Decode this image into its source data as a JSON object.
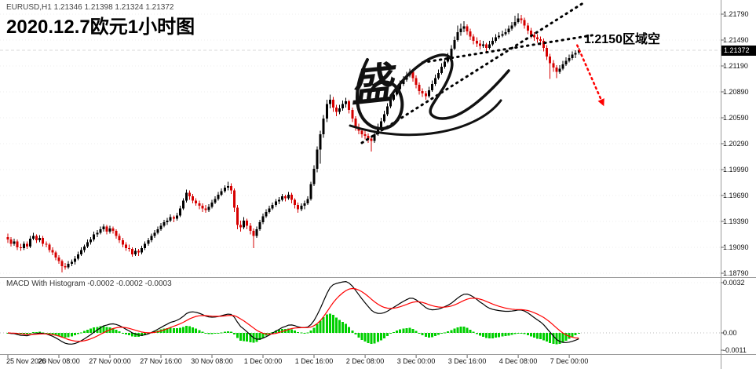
{
  "header": {
    "symbol_line": "EURUSD,H1 1.21346 1.21398 1.21324 1.21372",
    "title": "2020.12.7欧元1小时图"
  },
  "annotation": {
    "label": "1.2150区域空"
  },
  "watermark": {
    "text": "盛"
  },
  "price_axis": {
    "current": "1.21372"
  },
  "macd": {
    "header": "MACD With Histogram -0.0002 -0.0002 -0.0003"
  },
  "chart_data": {
    "type": "candlestick",
    "symbol": "EURUSD",
    "timeframe": "H1",
    "title": "2020.12.7欧元1小时图",
    "last_ohlc": {
      "open": "1.21346",
      "high": "1.21398",
      "low": "1.21324",
      "close": "1.21372"
    },
    "y_axis": {
      "max": 1.21954,
      "min": 1.18754
    },
    "y_ticks": [
      "1.21790",
      "1.21490",
      "1.21190",
      "1.20890",
      "1.20590",
      "1.20290",
      "1.19990",
      "1.19690",
      "1.19390",
      "1.19090",
      "1.18790"
    ],
    "macd_ticks": [
      "0.0032",
      "0.00",
      "-0.0011"
    ],
    "x_labels": [
      {
        "label": "25 Nov 2020",
        "bar": 0
      },
      {
        "label": "26 Nov 08:00",
        "bar": 16
      },
      {
        "label": "27 Nov 00:00",
        "bar": 32
      },
      {
        "label": "27 Nov 16:00",
        "bar": 48
      },
      {
        "label": "30 Nov 08:00",
        "bar": 64
      },
      {
        "label": "1 Dec 00:00",
        "bar": 80
      },
      {
        "label": "1 Dec 16:00",
        "bar": 96
      },
      {
        "label": "2 Dec 08:00",
        "bar": 112
      },
      {
        "label": "3 Dec 00:00",
        "bar": 128
      },
      {
        "label": "3 Dec 16:00",
        "bar": 144
      },
      {
        "label": "4 Dec 08:00",
        "bar": 160
      },
      {
        "label": "7 Dec 00:00",
        "bar": 176
      }
    ],
    "indicator": {
      "name": "MACD With Histogram",
      "displayed_values": [
        "-0.0002",
        "-0.0002",
        "-0.0003"
      ],
      "fast": 12,
      "slow": 26,
      "signal": 9
    },
    "colors": {
      "up": "#000000",
      "down": "#d60000",
      "hist": "#00cf00",
      "macd_line": "#000000",
      "signal_line": "#ff0000",
      "trendline": "#000000",
      "annotation_arrow": "#ff0000"
    },
    "trendlines": [
      {
        "b1": 111,
        "p1": 1.203,
        "b2": 180,
        "p2": 1.2191
      },
      {
        "b1": 130,
        "p1": 1.2123,
        "b2": 184,
        "p2": 1.2155
      }
    ],
    "sell_arrow": {
      "b1": 178.5,
      "p1": 1.2143,
      "b2": 186,
      "p2": 1.208
    },
    "candles": [
      [
        1.1921,
        1.1925,
        1.1914,
        1.1918
      ],
      [
        1.1918,
        1.1921,
        1.191,
        1.1913
      ],
      [
        1.1913,
        1.1919,
        1.1911,
        1.1916
      ],
      [
        1.1916,
        1.1918,
        1.1906,
        1.1909
      ],
      [
        1.1909,
        1.1913,
        1.1905,
        1.1908
      ],
      [
        1.1908,
        1.1916,
        1.1906,
        1.1913
      ],
      [
        1.1913,
        1.1916,
        1.1907,
        1.191
      ],
      [
        1.191,
        1.1922,
        1.1908,
        1.1919
      ],
      [
        1.1919,
        1.1926,
        1.1917,
        1.1922
      ],
      [
        1.1922,
        1.1924,
        1.1914,
        1.1917
      ],
      [
        1.1917,
        1.1923,
        1.1915,
        1.192
      ],
      [
        1.192,
        1.1922,
        1.191,
        1.1913
      ],
      [
        1.1913,
        1.1916,
        1.1909,
        1.1912
      ],
      [
        1.1912,
        1.1914,
        1.1903,
        1.1906
      ],
      [
        1.1906,
        1.1909,
        1.19,
        1.1903
      ],
      [
        1.1903,
        1.1905,
        1.1894,
        1.1897
      ],
      [
        1.1897,
        1.19,
        1.189,
        1.1893
      ],
      [
        1.1893,
        1.1895,
        1.188,
        1.1887
      ],
      [
        1.1887,
        1.1891,
        1.1883,
        1.1886
      ],
      [
        1.1886,
        1.1893,
        1.1884,
        1.189
      ],
      [
        1.189,
        1.1895,
        1.1887,
        1.1892
      ],
      [
        1.1892,
        1.1899,
        1.1889,
        1.1896
      ],
      [
        1.1896,
        1.1904,
        1.1894,
        1.1901
      ],
      [
        1.1901,
        1.1909,
        1.1899,
        1.1906
      ],
      [
        1.1906,
        1.1912,
        1.1903,
        1.191
      ],
      [
        1.191,
        1.1918,
        1.1908,
        1.1915
      ],
      [
        1.1915,
        1.1921,
        1.1912,
        1.1918
      ],
      [
        1.1918,
        1.1927,
        1.1916,
        1.1924
      ],
      [
        1.1924,
        1.1929,
        1.1921,
        1.1926
      ],
      [
        1.1926,
        1.1933,
        1.1924,
        1.193
      ],
      [
        1.193,
        1.1936,
        1.1927,
        1.1933
      ],
      [
        1.1933,
        1.1935,
        1.1924,
        1.1927
      ],
      [
        1.1927,
        1.1934,
        1.1925,
        1.1931
      ],
      [
        1.1931,
        1.1933,
        1.1925,
        1.1928
      ],
      [
        1.1928,
        1.193,
        1.1919,
        1.1922
      ],
      [
        1.1922,
        1.1925,
        1.1914,
        1.1917
      ],
      [
        1.1917,
        1.192,
        1.1909,
        1.1912
      ],
      [
        1.1912,
        1.1915,
        1.1905,
        1.1908
      ],
      [
        1.1908,
        1.1912,
        1.1904,
        1.1907
      ],
      [
        1.1907,
        1.1909,
        1.1898,
        1.1901
      ],
      [
        1.1901,
        1.1908,
        1.1899,
        1.1905
      ],
      [
        1.1905,
        1.1907,
        1.1899,
        1.1903
      ],
      [
        1.1903,
        1.1911,
        1.1901,
        1.1908
      ],
      [
        1.1908,
        1.1916,
        1.1906,
        1.1913
      ],
      [
        1.1913,
        1.192,
        1.1911,
        1.1917
      ],
      [
        1.1917,
        1.1925,
        1.1915,
        1.1922
      ],
      [
        1.1922,
        1.1929,
        1.192,
        1.1926
      ],
      [
        1.1926,
        1.1933,
        1.1924,
        1.193
      ],
      [
        1.193,
        1.1937,
        1.1928,
        1.1934
      ],
      [
        1.1934,
        1.1941,
        1.1932,
        1.1938
      ],
      [
        1.1938,
        1.1943,
        1.1935,
        1.194
      ],
      [
        1.194,
        1.1947,
        1.1938,
        1.1944
      ],
      [
        1.1944,
        1.1946,
        1.1938,
        1.1942
      ],
      [
        1.1942,
        1.1949,
        1.194,
        1.1946
      ],
      [
        1.1946,
        1.1957,
        1.1944,
        1.1954
      ],
      [
        1.1954,
        1.1966,
        1.1952,
        1.1963
      ],
      [
        1.1963,
        1.1976,
        1.1961,
        1.1972
      ],
      [
        1.1972,
        1.1975,
        1.1964,
        1.1968
      ],
      [
        1.1968,
        1.1971,
        1.196,
        1.1963
      ],
      [
        1.1963,
        1.1966,
        1.1957,
        1.196
      ],
      [
        1.196,
        1.1963,
        1.1953,
        1.1957
      ],
      [
        1.1957,
        1.196,
        1.195,
        1.1954
      ],
      [
        1.1954,
        1.1958,
        1.1949,
        1.1952
      ],
      [
        1.1952,
        1.1959,
        1.195,
        1.1956
      ],
      [
        1.1956,
        1.1964,
        1.1954,
        1.1961
      ],
      [
        1.1961,
        1.1968,
        1.1959,
        1.1965
      ],
      [
        1.1965,
        1.1973,
        1.1963,
        1.197
      ],
      [
        1.197,
        1.1977,
        1.1968,
        1.1974
      ],
      [
        1.1974,
        1.1981,
        1.1972,
        1.1978
      ],
      [
        1.1978,
        1.1985,
        1.1975,
        1.198
      ],
      [
        1.198,
        1.1983,
        1.1971,
        1.1975
      ],
      [
        1.1975,
        1.1977,
        1.195,
        1.1955
      ],
      [
        1.1955,
        1.1958,
        1.193,
        1.1935
      ],
      [
        1.1935,
        1.194,
        1.1927,
        1.1932
      ],
      [
        1.1932,
        1.1944,
        1.193,
        1.194
      ],
      [
        1.194,
        1.1942,
        1.193,
        1.1934
      ],
      [
        1.1934,
        1.1937,
        1.1924,
        1.1928
      ],
      [
        1.1928,
        1.1931,
        1.1908,
        1.1922
      ],
      [
        1.1922,
        1.1933,
        1.192,
        1.193
      ],
      [
        1.193,
        1.1941,
        1.1928,
        1.1938
      ],
      [
        1.1938,
        1.1948,
        1.1936,
        1.1945
      ],
      [
        1.1945,
        1.1953,
        1.1943,
        1.195
      ],
      [
        1.195,
        1.1957,
        1.1948,
        1.1954
      ],
      [
        1.1954,
        1.1961,
        1.1952,
        1.1958
      ],
      [
        1.1958,
        1.1965,
        1.1956,
        1.1962
      ],
      [
        1.1962,
        1.1967,
        1.1959,
        1.1964
      ],
      [
        1.1964,
        1.1971,
        1.1962,
        1.1968
      ],
      [
        1.1968,
        1.197,
        1.1962,
        1.1966
      ],
      [
        1.1966,
        1.1973,
        1.1964,
        1.197
      ],
      [
        1.197,
        1.1972,
        1.196,
        1.1964
      ],
      [
        1.1964,
        1.1966,
        1.1954,
        1.1958
      ],
      [
        1.1958,
        1.1961,
        1.1949,
        1.1953
      ],
      [
        1.1953,
        1.196,
        1.1951,
        1.1957
      ],
      [
        1.1957,
        1.1963,
        1.1953,
        1.196
      ],
      [
        1.196,
        1.1968,
        1.1958,
        1.1965
      ],
      [
        1.1965,
        1.1985,
        1.1963,
        1.1982
      ],
      [
        1.1982,
        1.2004,
        1.198,
        1.2
      ],
      [
        1.2,
        1.2026,
        1.1996,
        1.2022
      ],
      [
        1.2022,
        1.2044,
        1.2006,
        1.204
      ],
      [
        1.204,
        1.2062,
        1.2036,
        1.2058
      ],
      [
        1.2058,
        1.208,
        1.2054,
        1.2075
      ],
      [
        1.2075,
        1.2086,
        1.207,
        1.208
      ],
      [
        1.208,
        1.2083,
        1.2066,
        1.2071
      ],
      [
        1.2071,
        1.2074,
        1.2061,
        1.2066
      ],
      [
        1.2066,
        1.2074,
        1.2063,
        1.207
      ],
      [
        1.207,
        1.2079,
        1.2067,
        1.2075
      ],
      [
        1.2075,
        1.2082,
        1.2071,
        1.2078
      ],
      [
        1.2078,
        1.208,
        1.2064,
        1.2068
      ],
      [
        1.2068,
        1.2071,
        1.2054,
        1.2058
      ],
      [
        1.2058,
        1.2061,
        1.2044,
        1.2048
      ],
      [
        1.2048,
        1.2052,
        1.204,
        1.2044
      ],
      [
        1.2044,
        1.2047,
        1.2036,
        1.204
      ],
      [
        1.204,
        1.2044,
        1.2034,
        1.2038
      ],
      [
        1.2038,
        1.2041,
        1.203,
        1.2035
      ],
      [
        1.2035,
        1.2038,
        1.202,
        1.2032
      ],
      [
        1.2032,
        1.2044,
        1.203,
        1.204
      ],
      [
        1.204,
        1.2052,
        1.2038,
        1.2048
      ],
      [
        1.2048,
        1.2059,
        1.2046,
        1.2055
      ],
      [
        1.2055,
        1.2067,
        1.2053,
        1.2063
      ],
      [
        1.2063,
        1.2076,
        1.2061,
        1.2072
      ],
      [
        1.2072,
        1.2084,
        1.207,
        1.208
      ],
      [
        1.208,
        1.209,
        1.2078,
        1.2086
      ],
      [
        1.2086,
        1.2096,
        1.2084,
        1.2092
      ],
      [
        1.2092,
        1.2102,
        1.209,
        1.2098
      ],
      [
        1.2098,
        1.2107,
        1.2096,
        1.2103
      ],
      [
        1.2103,
        1.2112,
        1.2101,
        1.2108
      ],
      [
        1.2108,
        1.2116,
        1.2106,
        1.2112
      ],
      [
        1.2112,
        1.2114,
        1.2101,
        1.2105
      ],
      [
        1.2105,
        1.2108,
        1.2093,
        1.2097
      ],
      [
        1.2097,
        1.21,
        1.2086,
        1.209
      ],
      [
        1.209,
        1.2093,
        1.2083,
        1.2087
      ],
      [
        1.2087,
        1.209,
        1.208,
        1.2084
      ],
      [
        1.2084,
        1.2095,
        1.2082,
        1.2091
      ],
      [
        1.2091,
        1.2102,
        1.2089,
        1.2098
      ],
      [
        1.2098,
        1.2109,
        1.2096,
        1.2105
      ],
      [
        1.2105,
        1.2115,
        1.2103,
        1.2111
      ],
      [
        1.2111,
        1.2122,
        1.2109,
        1.2118
      ],
      [
        1.2118,
        1.2128,
        1.2116,
        1.2124
      ],
      [
        1.2124,
        1.2134,
        1.2122,
        1.213
      ],
      [
        1.213,
        1.2143,
        1.2128,
        1.2139
      ],
      [
        1.2139,
        1.2153,
        1.2137,
        1.2149
      ],
      [
        1.2149,
        1.2166,
        1.2147,
        1.2158
      ],
      [
        1.2158,
        1.2168,
        1.2154,
        1.2162
      ],
      [
        1.2162,
        1.2171,
        1.2158,
        1.2165
      ],
      [
        1.2165,
        1.2167,
        1.2155,
        1.2159
      ],
      [
        1.2159,
        1.2162,
        1.2149,
        1.2153
      ],
      [
        1.2153,
        1.2156,
        1.2144,
        1.2148
      ],
      [
        1.2148,
        1.2152,
        1.2141,
        1.2145
      ],
      [
        1.2145,
        1.2149,
        1.2138,
        1.2142
      ],
      [
        1.2142,
        1.2148,
        1.214,
        1.2144
      ],
      [
        1.2144,
        1.2146,
        1.2136,
        1.214
      ],
      [
        1.214,
        1.2148,
        1.2138,
        1.2144
      ],
      [
        1.2144,
        1.2152,
        1.2142,
        1.2148
      ],
      [
        1.2148,
        1.2156,
        1.2146,
        1.2152
      ],
      [
        1.2152,
        1.2158,
        1.215,
        1.2154
      ],
      [
        1.2154,
        1.216,
        1.2152,
        1.2156
      ],
      [
        1.2156,
        1.2162,
        1.2154,
        1.2158
      ],
      [
        1.2158,
        1.2166,
        1.2156,
        1.2162
      ],
      [
        1.2162,
        1.217,
        1.216,
        1.2166
      ],
      [
        1.2166,
        1.2177,
        1.2164,
        1.217
      ],
      [
        1.217,
        1.218,
        1.2168,
        1.2174
      ],
      [
        1.2174,
        1.2178,
        1.2168,
        1.2172
      ],
      [
        1.2172,
        1.2175,
        1.2162,
        1.2166
      ],
      [
        1.2166,
        1.2169,
        1.2156,
        1.216
      ],
      [
        1.216,
        1.2163,
        1.2151,
        1.2155
      ],
      [
        1.2155,
        1.2158,
        1.2148,
        1.2152
      ],
      [
        1.2152,
        1.2156,
        1.2146,
        1.215
      ],
      [
        1.215,
        1.2153,
        1.2143,
        1.2148
      ],
      [
        1.2148,
        1.2151,
        1.2136,
        1.214
      ],
      [
        1.214,
        1.2143,
        1.2126,
        1.213
      ],
      [
        1.213,
        1.2133,
        1.2104,
        1.2122
      ],
      [
        1.2122,
        1.2126,
        1.2112,
        1.2117
      ],
      [
        1.2117,
        1.212,
        1.2105,
        1.2112
      ],
      [
        1.2112,
        1.212,
        1.211,
        1.2116
      ],
      [
        1.2116,
        1.2125,
        1.2114,
        1.2121
      ],
      [
        1.2121,
        1.2129,
        1.2119,
        1.2125
      ],
      [
        1.2125,
        1.2132,
        1.2123,
        1.2128
      ],
      [
        1.2128,
        1.2136,
        1.2126,
        1.2132
      ],
      [
        1.2132,
        1.2137,
        1.2128,
        1.2134
      ],
      [
        1.21346,
        1.21398,
        1.21324,
        1.21372
      ]
    ]
  }
}
